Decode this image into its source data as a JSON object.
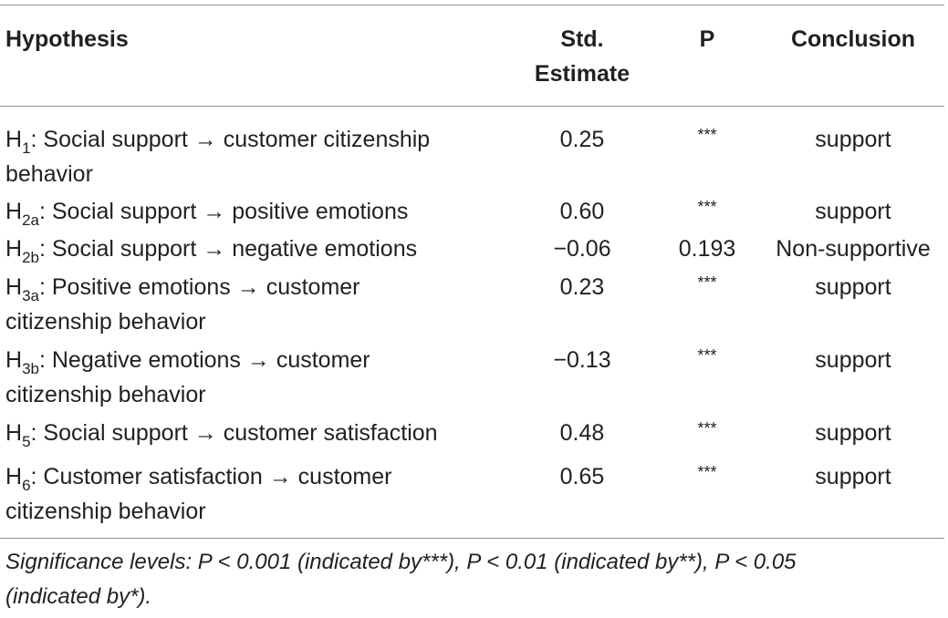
{
  "table": {
    "headers": {
      "hypothesis": "Hypothesis",
      "estimate_line1": "Std.",
      "estimate_line2": "Estimate",
      "p": "P",
      "conclusion": "Conclusion"
    },
    "rows": [
      {
        "h_main": "H",
        "h_sub": "1",
        "text1": ": Social support → customer citizenship",
        "text2": "behavior",
        "estimate": "0.25",
        "p": "***",
        "conclusion": "support"
      },
      {
        "h_main": "H",
        "h_sub": "2a",
        "text1": ": Social support → positive emotions",
        "text2": "",
        "estimate": "0.60",
        "p": "***",
        "conclusion": "support"
      },
      {
        "h_main": "H",
        "h_sub": "2b",
        "text1": ": Social support → negative emotions",
        "text2": "",
        "estimate": "−0.06",
        "p": "0.193",
        "conclusion": "Non-supportive"
      },
      {
        "h_main": "H",
        "h_sub": "3a",
        "text1": ": Positive emotions → customer",
        "text2": "citizenship behavior",
        "estimate": "0.23",
        "p": "***",
        "conclusion": "support"
      },
      {
        "h_main": "H",
        "h_sub": "3b",
        "text1": ": Negative emotions → customer",
        "text2": "citizenship behavior",
        "estimate": "−0.13",
        "p": "***",
        "conclusion": "support"
      },
      {
        "h_main": "H",
        "h_sub": "5",
        "text1": ": Social support → customer satisfaction",
        "text2": "",
        "estimate": "0.48",
        "p": "***",
        "conclusion": "support"
      },
      {
        "h_main": "H",
        "h_sub": "6",
        "text1": ": Customer satisfaction → customer",
        "text2": "citizenship behavior",
        "estimate": "0.65",
        "p": "***",
        "conclusion": "support"
      }
    ],
    "footnote_line1": "Significance levels: P < 0.001 (indicated by***), P < 0.01 (indicated by**), P < 0.05",
    "footnote_line2": "(indicated by*)."
  }
}
